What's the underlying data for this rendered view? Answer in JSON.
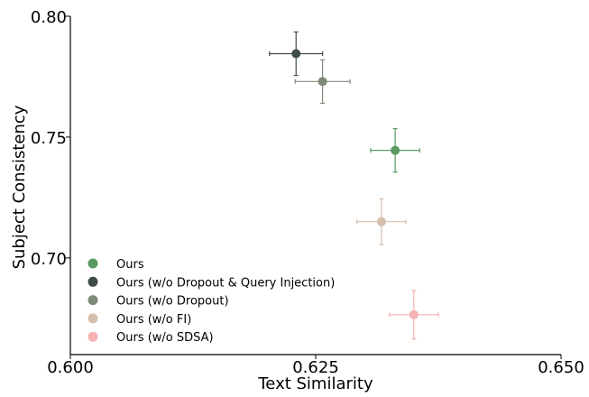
{
  "chart_data": {
    "type": "scatter",
    "title": "",
    "xlabel": "Text Similarity",
    "ylabel": "Subject Consistency",
    "xlim": [
      0.6,
      0.65
    ],
    "ylim": [
      0.66,
      0.8
    ],
    "xticks": [
      0.6,
      0.625,
      0.65
    ],
    "xtick_labels": [
      "0.600",
      "0.625",
      "0.650"
    ],
    "yticks": [
      0.7,
      0.75,
      0.8
    ],
    "ytick_labels": [
      "0.70",
      "0.75",
      "0.80"
    ],
    "grid": false,
    "legend_position": "lower-left",
    "series": [
      {
        "name": "Ours",
        "color": "#5a9a62",
        "x": 0.6331,
        "y": 0.7445,
        "xerr": 0.0025,
        "yerr": 0.009
      },
      {
        "name": "Ours (w/o Dropout & Query Injection)",
        "color": "#3d4d45",
        "x": 0.623,
        "y": 0.7845,
        "xerr": 0.0027,
        "yerr": 0.009
      },
      {
        "name": "Ours (w/o Dropout)",
        "color": "#7e8b79",
        "x": 0.6257,
        "y": 0.773,
        "xerr": 0.0028,
        "yerr": 0.009
      },
      {
        "name": "Ours (w/o FI)",
        "color": "#d4bfae",
        "x": 0.6317,
        "y": 0.715,
        "xerr": 0.0025,
        "yerr": 0.0095
      },
      {
        "name": "Ours (w/o SDSA)",
        "color": "#f5b1b3",
        "x": 0.635,
        "y": 0.6765,
        "xerr": 0.0025,
        "yerr": 0.01
      }
    ]
  }
}
